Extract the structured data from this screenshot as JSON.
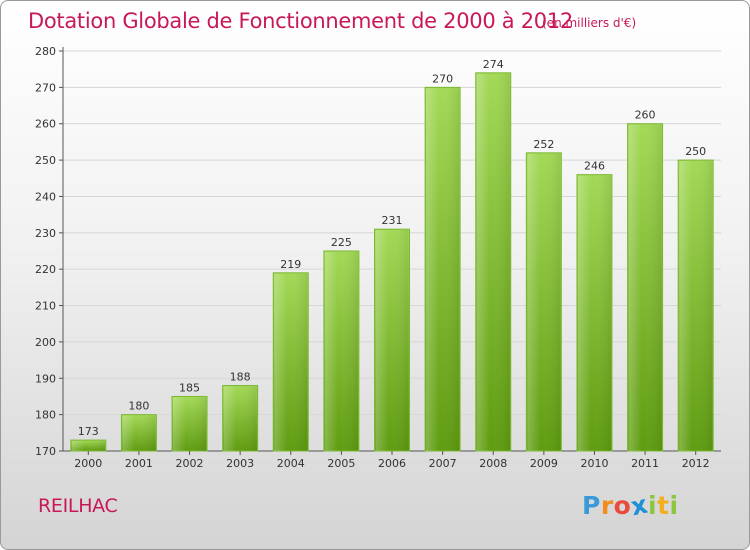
{
  "header": {
    "title": "Dotation Globale de Fonctionnement de 2000 à 2012",
    "unit": "(en milliers d'€)"
  },
  "footer": {
    "commune": "REILHAC",
    "logo_text": "Proxiti",
    "logo_letters": [
      {
        "ch": "P",
        "color": "#3a9ad9"
      },
      {
        "ch": "r",
        "color": "#f28c1e"
      },
      {
        "ch": "o",
        "color": "#e84c3d"
      },
      {
        "ch": "x",
        "color": "#1f8fd6"
      },
      {
        "ch": "i",
        "color": "#8cc63f"
      },
      {
        "ch": "t",
        "color": "#f2b01e"
      },
      {
        "ch": "i",
        "color": "#8cc63f"
      }
    ]
  },
  "colors": {
    "accent": "#c8185a",
    "bar_light": "#9fd452",
    "bar_dark": "#63a012",
    "axis": "#444444",
    "grid": "#cfcfcf"
  },
  "chart_data": {
    "type": "bar",
    "categories": [
      "2000",
      "2001",
      "2002",
      "2003",
      "2004",
      "2005",
      "2006",
      "2007",
      "2008",
      "2009",
      "2010",
      "2011",
      "2012"
    ],
    "values": [
      173,
      180,
      185,
      188,
      219,
      225,
      231,
      270,
      274,
      252,
      246,
      260,
      250
    ],
    "ylim": [
      170,
      280
    ],
    "yticks": [
      170,
      180,
      190,
      200,
      210,
      220,
      230,
      240,
      250,
      260,
      270,
      280
    ],
    "grid": true,
    "data_labels": true
  }
}
